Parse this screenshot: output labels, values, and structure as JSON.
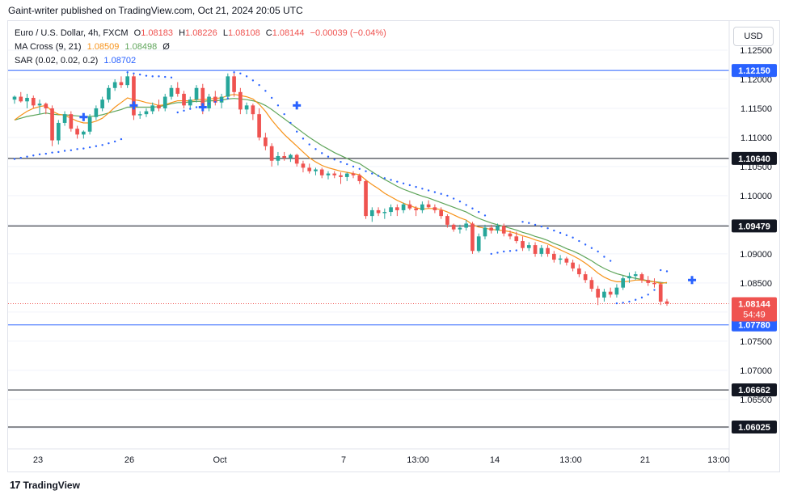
{
  "publisher": "Gaint-writer published on TradingView.com, Oct 21, 2024 20:05 UTC",
  "legend": {
    "symbol": "Euro / U.S. Dollar, 4h, FXCM",
    "ohlc": {
      "o_label": "O",
      "o": "1.08183",
      "h_label": "H",
      "h": "1.08226",
      "l_label": "L",
      "l": "1.08108",
      "c_label": "C",
      "c": "1.08144",
      "change": "−0.00039 (−0.04%)"
    },
    "ma_cross": {
      "label": "MA Cross (9, 21)",
      "fast": "1.08509",
      "slow": "1.08498",
      "suffix": "Ø"
    },
    "sar": {
      "label": "SAR (0.02, 0.02, 0.2)",
      "value": "1.08702"
    }
  },
  "currency_button": "USD",
  "footer_brand": "TradingView",
  "footer_mark": "17",
  "colors": {
    "bull": "#26a69a",
    "bear": "#ef5350",
    "ma_fast": "#f7931a",
    "ma_slow": "#5fa55a",
    "sar": "#2962ff",
    "blue_line": "#2962ff",
    "black_line": "#131722",
    "grid": "#f0f3fa",
    "label_dark": "#131722",
    "label_blue": "#2962ff",
    "price_label": "#ef5350"
  },
  "chart_data": {
    "type": "candlestick",
    "symbol": "EURUSD",
    "timeframe": "4h",
    "y_range": [
      1.0565,
      1.13
    ],
    "y_ticks": [
      "1.12500",
      "1.12000",
      "1.11500",
      "1.11000",
      "1.10500",
      "1.10000",
      "1.09500",
      "1.09000",
      "1.08500",
      "1.08000",
      "1.07500",
      "1.07000",
      "1.06500",
      "1.06000"
    ],
    "x_ticks": [
      "23",
      "26",
      "Oct",
      "7",
      "13:00",
      "14",
      "13:00",
      "21",
      "13:00"
    ],
    "horizontal_levels": [
      {
        "price": 1.1215,
        "label": "1.12150",
        "style": "blue"
      },
      {
        "price": 1.1064,
        "label": "1.10640",
        "style": "black"
      },
      {
        "price": 1.09479,
        "label": "1.09479",
        "style": "black"
      },
      {
        "price": 1.0778,
        "label": "1.07780",
        "style": "blue"
      },
      {
        "price": 1.06662,
        "label": "1.06662",
        "style": "black"
      },
      {
        "price": 1.06025,
        "label": "1.06025",
        "style": "black"
      }
    ],
    "current_price": {
      "price": 1.08144,
      "label": "1.08144",
      "countdown": "54:49"
    },
    "candles": [
      [
        1.1165,
        1.1172,
        1.1158,
        1.117
      ],
      [
        1.117,
        1.1178,
        1.116,
        1.1162
      ],
      [
        1.1162,
        1.1175,
        1.115,
        1.1168
      ],
      [
        1.1168,
        1.1172,
        1.115,
        1.1155
      ],
      [
        1.1155,
        1.1165,
        1.114,
        1.1158
      ],
      [
        1.1158,
        1.116,
        1.114,
        1.115
      ],
      [
        1.115,
        1.1155,
        1.1085,
        1.1095
      ],
      [
        1.1095,
        1.113,
        1.1088,
        1.1125
      ],
      [
        1.1125,
        1.1145,
        1.112,
        1.114
      ],
      [
        1.114,
        1.1145,
        1.111,
        1.1115
      ],
      [
        1.1115,
        1.112,
        1.1098,
        1.1105
      ],
      [
        1.1105,
        1.1112,
        1.1098,
        1.111
      ],
      [
        1.111,
        1.114,
        1.1105,
        1.1135
      ],
      [
        1.1135,
        1.1155,
        1.113,
        1.115
      ],
      [
        1.115,
        1.117,
        1.1145,
        1.1165
      ],
      [
        1.1165,
        1.119,
        1.116,
        1.1185
      ],
      [
        1.1185,
        1.12,
        1.118,
        1.1195
      ],
      [
        1.1195,
        1.1205,
        1.1185,
        1.119
      ],
      [
        1.119,
        1.1212,
        1.1185,
        1.1205
      ],
      [
        1.1205,
        1.121,
        1.113,
        1.1138
      ],
      [
        1.1138,
        1.1145,
        1.1132,
        1.114
      ],
      [
        1.114,
        1.115,
        1.1135,
        1.1145
      ],
      [
        1.1145,
        1.116,
        1.114,
        1.1155
      ],
      [
        1.1155,
        1.1165,
        1.1145,
        1.115
      ],
      [
        1.115,
        1.1175,
        1.1145,
        1.117
      ],
      [
        1.117,
        1.119,
        1.1165,
        1.1185
      ],
      [
        1.1185,
        1.1195,
        1.117,
        1.1175
      ],
      [
        1.1175,
        1.118,
        1.115,
        1.1155
      ],
      [
        1.1155,
        1.117,
        1.115,
        1.1165
      ],
      [
        1.1165,
        1.119,
        1.116,
        1.1185
      ],
      [
        1.1185,
        1.1192,
        1.114,
        1.115
      ],
      [
        1.115,
        1.1175,
        1.1145,
        1.117
      ],
      [
        1.117,
        1.118,
        1.1155,
        1.116
      ],
      [
        1.116,
        1.1175,
        1.115,
        1.117
      ],
      [
        1.117,
        1.121,
        1.1165,
        1.1205
      ],
      [
        1.1205,
        1.1212,
        1.117,
        1.1178
      ],
      [
        1.1178,
        1.1185,
        1.114,
        1.1148
      ],
      [
        1.1148,
        1.116,
        1.114,
        1.1155
      ],
      [
        1.1155,
        1.1158,
        1.113,
        1.114
      ],
      [
        1.114,
        1.115,
        1.1095,
        1.11
      ],
      [
        1.11,
        1.1108,
        1.1078,
        1.1085
      ],
      [
        1.1085,
        1.109,
        1.105,
        1.106
      ],
      [
        1.106,
        1.1075,
        1.1052,
        1.1068
      ],
      [
        1.1068,
        1.1075,
        1.106,
        1.1065
      ],
      [
        1.1065,
        1.1072,
        1.1058,
        1.107
      ],
      [
        1.107,
        1.1072,
        1.105,
        1.1055
      ],
      [
        1.1055,
        1.106,
        1.104,
        1.1048
      ],
      [
        1.1048,
        1.1055,
        1.1038,
        1.1042
      ],
      [
        1.1042,
        1.1048,
        1.1035,
        1.1045
      ],
      [
        1.1045,
        1.1048,
        1.103,
        1.1035
      ],
      [
        1.1035,
        1.1042,
        1.1028,
        1.1038
      ],
      [
        1.1038,
        1.1042,
        1.103,
        1.1035
      ],
      [
        1.1035,
        1.104,
        1.102,
        1.1032
      ],
      [
        1.1032,
        1.104,
        1.1025,
        1.1038
      ],
      [
        1.1038,
        1.1042,
        1.103,
        1.1035
      ],
      [
        1.1035,
        1.1038,
        1.102,
        1.1025
      ],
      [
        1.1025,
        1.1028,
        1.096,
        1.0965
      ],
      [
        1.0965,
        1.098,
        1.0955,
        1.0975
      ],
      [
        1.0975,
        1.098,
        1.0965,
        1.097
      ],
      [
        1.097,
        1.0978,
        1.096,
        1.0972
      ],
      [
        1.0972,
        1.0985,
        1.0965,
        1.098
      ],
      [
        1.098,
        1.0985,
        1.0965,
        1.0975
      ],
      [
        1.0975,
        1.0988,
        1.097,
        1.0985
      ],
      [
        1.0985,
        1.0992,
        1.0975,
        1.0978
      ],
      [
        1.0978,
        1.0982,
        1.0965,
        1.0975
      ],
      [
        1.0975,
        1.099,
        1.097,
        1.0985
      ],
      [
        1.0985,
        1.0992,
        1.0978,
        1.098
      ],
      [
        1.098,
        1.0985,
        1.097,
        1.0975
      ],
      [
        1.0975,
        1.098,
        1.096,
        1.0965
      ],
      [
        1.0965,
        1.0968,
        1.0945,
        1.095
      ],
      [
        1.095,
        1.0952,
        1.0938,
        1.0942
      ],
      [
        1.0942,
        1.095,
        1.0935,
        1.0945
      ],
      [
        1.0945,
        1.0958,
        1.094,
        1.0952
      ],
      [
        1.0952,
        1.0955,
        1.09,
        1.0905
      ],
      [
        1.0905,
        1.0935,
        1.0902,
        1.093
      ],
      [
        1.093,
        1.095,
        1.0925,
        1.0945
      ],
      [
        1.0945,
        1.095,
        1.0935,
        1.094
      ],
      [
        1.094,
        1.0952,
        1.0935,
        1.0948
      ],
      [
        1.0948,
        1.0952,
        1.093,
        1.0935
      ],
      [
        1.0935,
        1.094,
        1.0925,
        1.093
      ],
      [
        1.093,
        1.0938,
        1.0918,
        1.0922
      ],
      [
        1.0922,
        1.093,
        1.0905,
        1.091
      ],
      [
        1.091,
        1.092,
        1.0905,
        1.0915
      ],
      [
        1.0915,
        1.092,
        1.0895,
        1.09
      ],
      [
        1.09,
        1.0915,
        1.0895,
        1.091
      ],
      [
        1.091,
        1.0915,
        1.0895,
        1.09
      ],
      [
        1.09,
        1.0905,
        1.0885,
        1.089
      ],
      [
        1.089,
        1.0898,
        1.0882,
        1.0892
      ],
      [
        1.0892,
        1.0895,
        1.088,
        1.0885
      ],
      [
        1.0885,
        1.089,
        1.087,
        1.0875
      ],
      [
        1.0875,
        1.0882,
        1.086,
        1.0865
      ],
      [
        1.0865,
        1.087,
        1.085,
        1.0855
      ],
      [
        1.0855,
        1.086,
        1.0835,
        1.084
      ],
      [
        1.084,
        1.0845,
        1.0812,
        1.0825
      ],
      [
        1.0825,
        1.084,
        1.0818,
        1.0835
      ],
      [
        1.0835,
        1.0842,
        1.0825,
        1.083
      ],
      [
        1.083,
        1.0848,
        1.0825,
        1.0842
      ],
      [
        1.0842,
        1.0862,
        1.0838,
        1.0858
      ],
      [
        1.0858,
        1.0868,
        1.085,
        1.0862
      ],
      [
        1.0862,
        1.087,
        1.0855,
        1.0865
      ],
      [
        1.0865,
        1.0868,
        1.085,
        1.0855
      ],
      [
        1.0855,
        1.0862,
        1.0845,
        1.085
      ],
      [
        1.085,
        1.0858,
        1.0842,
        1.0848
      ],
      [
        1.0848,
        1.0852,
        1.0812,
        1.0818
      ],
      [
        1.08183,
        1.08226,
        1.08108,
        1.08144
      ]
    ],
    "ma_fast": [
      1.113,
      1.1138,
      1.1145,
      1.115,
      1.1153,
      1.1155,
      1.1145,
      1.114,
      1.1138,
      1.1133,
      1.1128,
      1.1125,
      1.1125,
      1.1128,
      1.1133,
      1.1142,
      1.1152,
      1.116,
      1.1168,
      1.1165,
      1.1163,
      1.116,
      1.1158,
      1.1155,
      1.1156,
      1.116,
      1.1163,
      1.1163,
      1.1163,
      1.1165,
      1.1165,
      1.1166,
      1.1167,
      1.1168,
      1.1172,
      1.1174,
      1.1172,
      1.117,
      1.1166,
      1.1157,
      1.1145,
      1.113,
      1.1117,
      1.1105,
      1.1095,
      1.1085,
      1.1075,
      1.1065,
      1.1058,
      1.1052,
      1.1048,
      1.1045,
      1.1042,
      1.104,
      1.1038,
      1.1036,
      1.1027,
      1.1019,
      1.1012,
      1.1004,
      1.0998,
      1.0992,
      1.0987,
      1.0983,
      1.0979,
      1.0977,
      1.0978,
      1.0978,
      1.0976,
      1.0972,
      1.0967,
      1.0962,
      1.0958,
      1.095,
      1.0946,
      1.0944,
      1.0942,
      1.0941,
      1.094,
      1.0938,
      1.0935,
      1.0931,
      1.0928,
      1.0924,
      1.0921,
      1.0917,
      1.0912,
      1.0907,
      1.0902,
      1.0897,
      1.0891,
      1.0884,
      1.0876,
      1.0867,
      1.086,
      1.0855,
      1.0852,
      1.0852,
      1.0853,
      1.0855,
      1.0855,
      1.0853,
      1.0852,
      1.0849,
      1.08509
    ],
    "ma_slow": [
      1.113,
      1.1133,
      1.1136,
      1.1138,
      1.114,
      1.1142,
      1.114,
      1.1139,
      1.1139,
      1.1138,
      1.1137,
      1.1136,
      1.1136,
      1.1137,
      1.1139,
      1.1142,
      1.1145,
      1.1148,
      1.1152,
      1.1152,
      1.1152,
      1.1152,
      1.1152,
      1.1153,
      1.1155,
      1.1158,
      1.116,
      1.116,
      1.1161,
      1.1162,
      1.1162,
      1.1163,
      1.1163,
      1.1164,
      1.1166,
      1.1167,
      1.1166,
      1.1165,
      1.1163,
      1.116,
      1.1155,
      1.1148,
      1.114,
      1.1132,
      1.1124,
      1.1116,
      1.1108,
      1.11,
      1.1093,
      1.1086,
      1.108,
      1.1074,
      1.1069,
      1.1064,
      1.1059,
      1.1055,
      1.1048,
      1.1041,
      1.1034,
      1.1028,
      1.1022,
      1.1016,
      1.1011,
      1.1007,
      1.1003,
      1.0999,
      1.0996,
      1.0992,
      1.0988,
      1.0984,
      1.098,
      1.0976,
      1.0972,
      1.0966,
      1.0961,
      1.0957,
      1.0953,
      1.095,
      1.0947,
      1.0944,
      1.0941,
      1.0937,
      1.0934,
      1.093,
      1.0927,
      1.0923,
      1.0918,
      1.0914,
      1.0909,
      1.0905,
      1.09,
      1.0894,
      1.0888,
      1.0881,
      1.0875,
      1.087,
      1.0866,
      1.0863,
      1.086,
      1.0858,
      1.0856,
      1.0854,
      1.0852,
      1.0851,
      1.08498
    ],
    "sar": [
      1.1063,
      1.1065,
      1.1067,
      1.1069,
      1.1071,
      1.1072,
      1.1074,
      1.1075,
      1.1077,
      1.1078,
      1.108,
      1.1081,
      1.1083,
      1.1085,
      1.1087,
      1.109,
      1.1093,
      1.1097,
      1.1212,
      1.121,
      1.1208,
      1.1206,
      1.1205,
      1.1205,
      1.1204,
      1.1203,
      1.1143,
      1.1146,
      1.1149,
      1.1152,
      1.1155,
      1.1158,
      1.1161,
      1.1164,
      1.1167,
      1.1212,
      1.121,
      1.1205,
      1.1198,
      1.119,
      1.118,
      1.1168,
      1.1155,
      1.114,
      1.1125,
      1.111,
      1.1098,
      1.1088,
      1.108,
      1.1073,
      1.1067,
      1.1062,
      1.1058,
      1.1054,
      1.105,
      1.1046,
      1.1042,
      1.1038,
      1.1034,
      1.103,
      1.1027,
      1.1024,
      1.1021,
      1.1018,
      1.1015,
      1.1012,
      1.1009,
      1.1006,
      1.1003,
      1.1,
      1.0995,
      1.099,
      1.0984,
      1.0978,
      1.0972,
      1.0966,
      1.09,
      1.0902,
      1.0904,
      1.0905,
      1.0906,
      1.0955,
      1.0953,
      1.095,
      1.0947,
      1.0944,
      1.094,
      1.0936,
      1.0932,
      1.0928,
      1.0922,
      1.0916,
      1.091,
      1.0904,
      1.0895,
      1.0888,
      1.0815,
      1.0816,
      1.0818,
      1.0821,
      1.0825,
      1.083,
      1.0838,
      1.0872,
      1.087
    ],
    "cross_markers": [
      {
        "index": 11,
        "price": 1.1135
      },
      {
        "index": 19,
        "price": 1.1155
      },
      {
        "index": 30,
        "price": 1.1152
      },
      {
        "index": 45,
        "price": 1.1155
      },
      {
        "index": 108,
        "price": 1.0855
      }
    ]
  }
}
